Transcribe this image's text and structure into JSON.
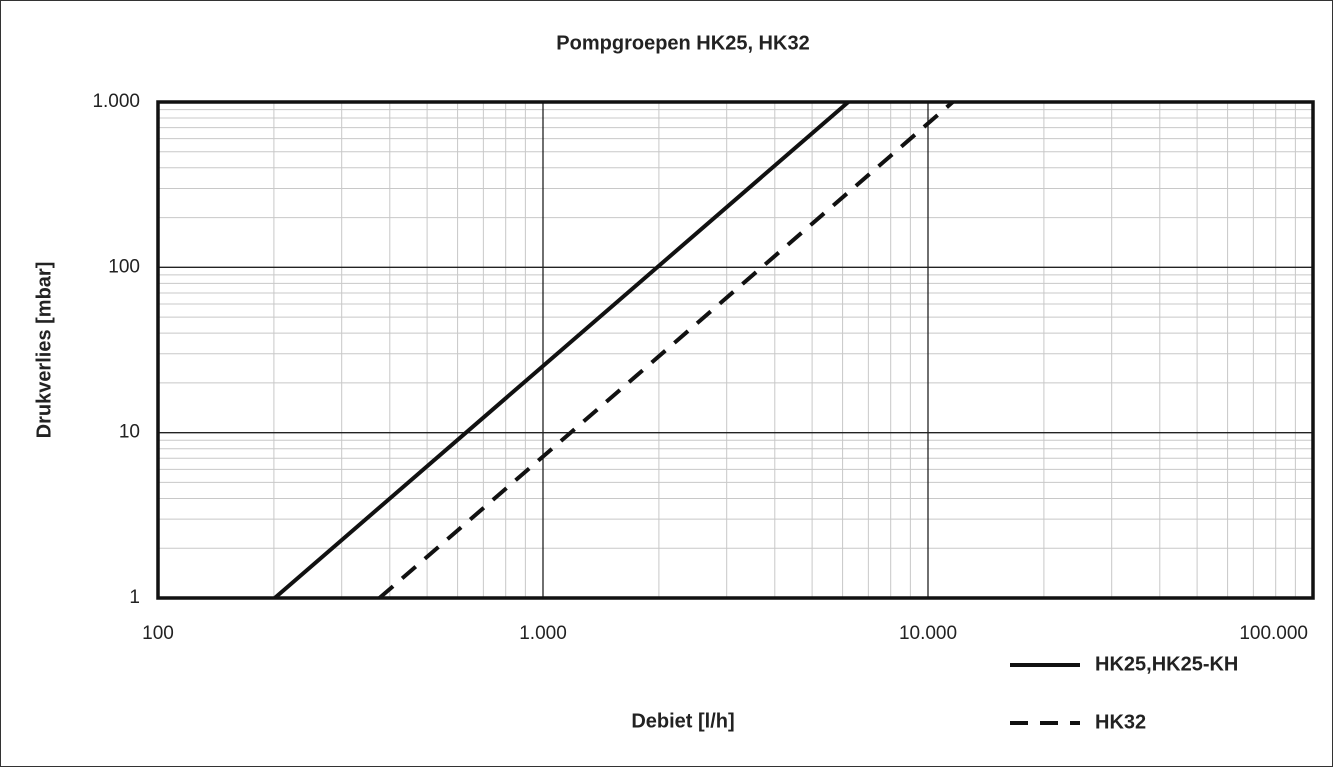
{
  "chart_data": {
    "type": "line",
    "title": "Pompgroepen HK25, HK32",
    "xlabel": "Debiet [l/h]",
    "ylabel": "Drukverlies [mbar]",
    "xscale": "log",
    "yscale": "log",
    "grid": true,
    "legend": "lower right",
    "xlim": [
      100,
      100000
    ],
    "ylim": [
      1,
      1000
    ],
    "xticks": [
      100,
      {
        "value": 1000,
        "label": "1.000"
      },
      {
        "value": 10000,
        "label": "10.000"
      },
      {
        "value": 100000,
        "label": "100.000"
      }
    ],
    "yticks": [
      1,
      10,
      100,
      {
        "value": 1000,
        "label": "1.000"
      }
    ],
    "xminorticks": [
      200,
      300,
      400,
      500,
      600,
      700,
      800,
      900,
      2000,
      3000,
      4000,
      5000,
      6000,
      7000,
      8000,
      9000,
      20000,
      30000,
      40000,
      50000,
      60000,
      70000,
      80000,
      90000
    ],
    "yminorticks": [
      2,
      3,
      4,
      5,
      6,
      7,
      8,
      9,
      20,
      30,
      40,
      50,
      60,
      70,
      80,
      90,
      200,
      300,
      400,
      500,
      600,
      700,
      800,
      900
    ],
    "series": [
      {
        "name": "HK25,HK25-KH",
        "color": "#111111",
        "style": "solid",
        "x": [
          201,
          6210
        ],
        "values": [
          1,
          1000
        ]
      },
      {
        "name": "HK32",
        "color": "#111111",
        "style": "dashed",
        "x": [
          376,
          11600
        ],
        "values": [
          1,
          1000
        ]
      }
    ]
  }
}
